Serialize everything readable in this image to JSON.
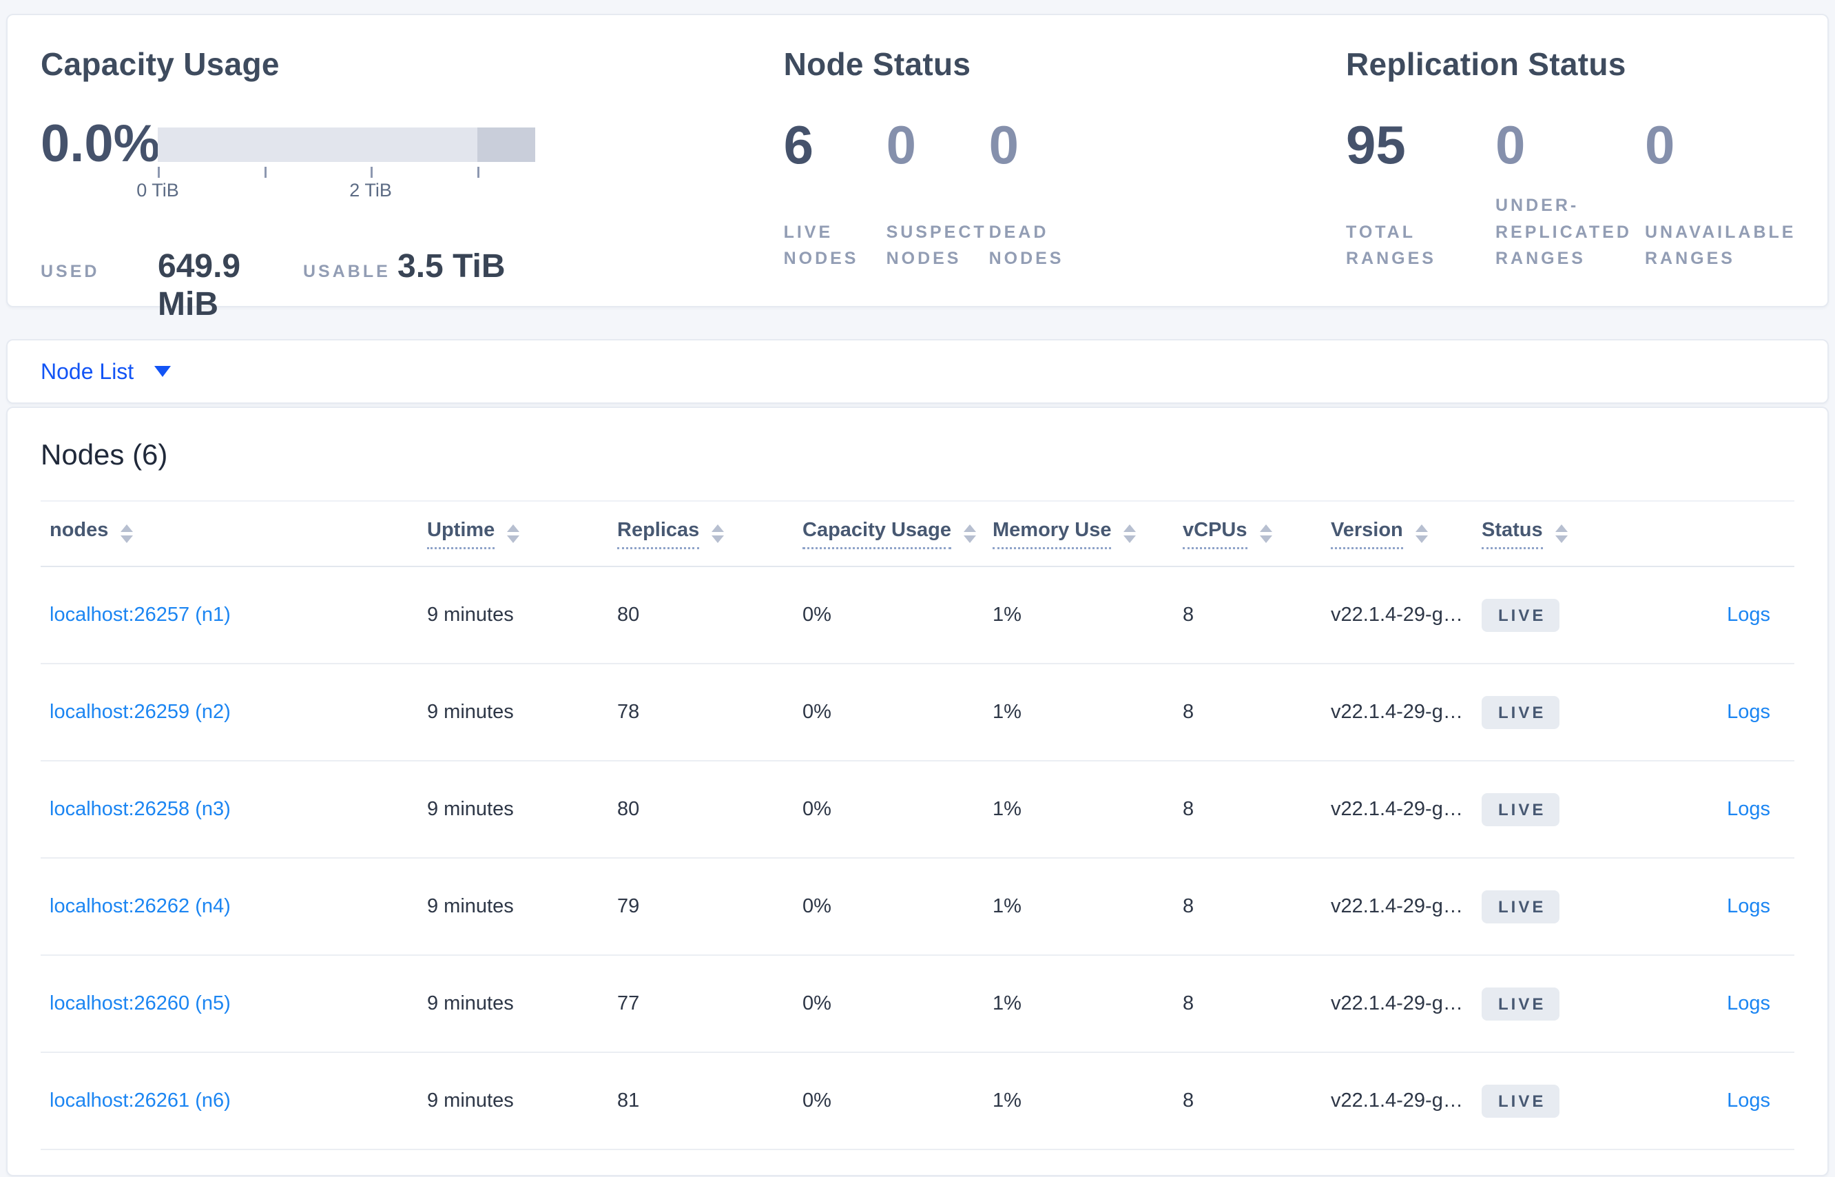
{
  "summary": {
    "capacity": {
      "title": "Capacity Usage",
      "percent": "0.0%",
      "ticks": [
        "0 TiB",
        "2 TiB"
      ],
      "used_label": "USED",
      "used_value": "649.9 MiB",
      "usable_label": "USABLE",
      "usable_value": "3.5 TiB"
    },
    "node_status": {
      "title": "Node Status",
      "stats": [
        {
          "value": "6",
          "label": "LIVE NODES"
        },
        {
          "value": "0",
          "label": "SUSPECT NODES"
        },
        {
          "value": "0",
          "label": "DEAD NODES"
        }
      ]
    },
    "replication": {
      "title": "Replication Status",
      "stats": [
        {
          "value": "95",
          "label": "TOTAL RANGES"
        },
        {
          "value": "0",
          "label": "UNDER-REPLICATED RANGES"
        },
        {
          "value": "0",
          "label": "UNAVAILABLE RANGES"
        }
      ]
    }
  },
  "chart_data": {
    "type": "bar",
    "title": "Capacity Usage",
    "percent_used": 0.0,
    "used": "649.9 MiB",
    "usable": "3.5 TiB",
    "axis_ticks_tib": [
      0,
      1,
      2,
      3
    ],
    "labeled_ticks": [
      "0 TiB",
      "2 TiB"
    ],
    "bar_total_tib": 3.55,
    "dark_segment_tib": [
      3.0,
      3.55
    ]
  },
  "view_selector": {
    "label": "Node List"
  },
  "table": {
    "title": "Nodes (6)",
    "columns": [
      {
        "label": "nodes",
        "underlined": false
      },
      {
        "label": "Uptime",
        "underlined": true
      },
      {
        "label": "Replicas",
        "underlined": true
      },
      {
        "label": "Capacity Usage",
        "underlined": true
      },
      {
        "label": "Memory Use",
        "underlined": true
      },
      {
        "label": "vCPUs",
        "underlined": true
      },
      {
        "label": "Version",
        "underlined": true
      },
      {
        "label": "Status",
        "underlined": true
      }
    ],
    "rows": [
      {
        "node": "localhost:26257 (n1)",
        "uptime": "9 minutes",
        "replicas": "80",
        "capacity_usage": "0%",
        "memory_use": "1%",
        "vcpus": "8",
        "version": "v22.1.4-29-g…",
        "status": "LIVE",
        "logs": "Logs"
      },
      {
        "node": "localhost:26259 (n2)",
        "uptime": "9 minutes",
        "replicas": "78",
        "capacity_usage": "0%",
        "memory_use": "1%",
        "vcpus": "8",
        "version": "v22.1.4-29-g…",
        "status": "LIVE",
        "logs": "Logs"
      },
      {
        "node": "localhost:26258 (n3)",
        "uptime": "9 minutes",
        "replicas": "80",
        "capacity_usage": "0%",
        "memory_use": "1%",
        "vcpus": "8",
        "version": "v22.1.4-29-g…",
        "status": "LIVE",
        "logs": "Logs"
      },
      {
        "node": "localhost:26262 (n4)",
        "uptime": "9 minutes",
        "replicas": "79",
        "capacity_usage": "0%",
        "memory_use": "1%",
        "vcpus": "8",
        "version": "v22.1.4-29-g…",
        "status": "LIVE",
        "logs": "Logs"
      },
      {
        "node": "localhost:26260 (n5)",
        "uptime": "9 minutes",
        "replicas": "77",
        "capacity_usage": "0%",
        "memory_use": "1%",
        "vcpus": "8",
        "version": "v22.1.4-29-g…",
        "status": "LIVE",
        "logs": "Logs"
      },
      {
        "node": "localhost:26261 (n6)",
        "uptime": "9 minutes",
        "replicas": "81",
        "capacity_usage": "0%",
        "memory_use": "1%",
        "vcpus": "8",
        "version": "v22.1.4-29-g…",
        "status": "LIVE",
        "logs": "Logs"
      }
    ]
  },
  "colors": {
    "page_background": "#f4f6fa",
    "accent_blue": "#1254f5",
    "link_blue": "#1b85f2",
    "badge_background": "#e7ebf1",
    "badge_text": "#475872",
    "bar_light": "#e2e5ed",
    "bar_dark": "#c9ceda"
  }
}
